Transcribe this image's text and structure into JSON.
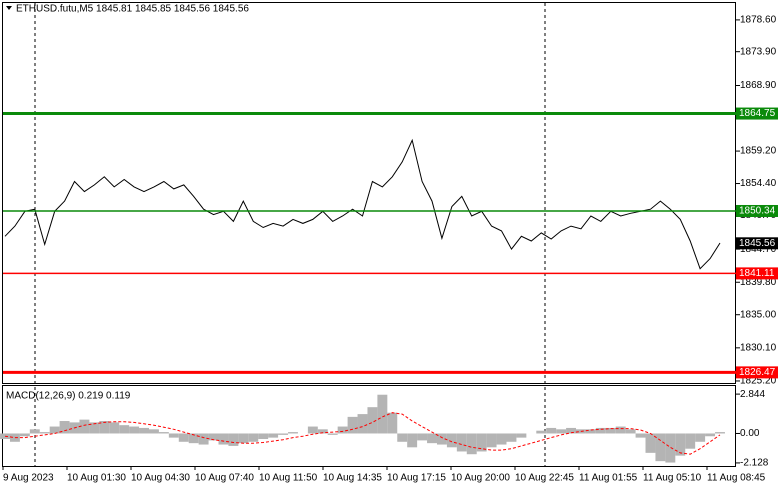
{
  "chart_data": [
    {
      "type": "line",
      "title": "ETHUSD.futu,M5  1845.81 1845.85 1845.56 1845.56",
      "color": "#000000",
      "values": [
        1846.6,
        1848.1,
        1850.3,
        1850.6,
        1845.4,
        1850.3,
        1851.8,
        1854.7,
        1853.2,
        1854.2,
        1855.4,
        1853.9,
        1855.0,
        1853.9,
        1853.2,
        1853.9,
        1854.7,
        1853.6,
        1854.2,
        1852.5,
        1850.6,
        1849.8,
        1850.3,
        1848.8,
        1851.8,
        1848.8,
        1847.9,
        1848.5,
        1848.1,
        1849.1,
        1848.5,
        1849.1,
        1850.3,
        1848.8,
        1849.6,
        1850.6,
        1849.6,
        1854.7,
        1853.9,
        1855.4,
        1857.6,
        1860.8,
        1854.7,
        1851.8,
        1846.3,
        1851.0,
        1852.5,
        1849.6,
        1850.3,
        1848.1,
        1847.4,
        1844.7,
        1846.6,
        1845.9,
        1847.1,
        1846.2,
        1847.4,
        1848.1,
        1847.7,
        1849.6,
        1848.8,
        1850.3,
        1849.6,
        1850.0,
        1850.3,
        1850.6,
        1851.8,
        1850.6,
        1849.1,
        1845.9,
        1841.8,
        1843.3,
        1845.6
      ],
      "ylim": [
        1824.9,
        1881.1
      ],
      "yticks": [
        {
          "value": 1878.6,
          "label": "1878.60"
        },
        {
          "value": 1873.9,
          "label": "1873.90"
        },
        {
          "value": 1868.9,
          "label": "1868.90"
        },
        {
          "value": 1859.2,
          "label": "1859.20"
        },
        {
          "value": 1854.4,
          "label": "1854.40"
        },
        {
          "value": 1849.7,
          "label": "1849.70"
        },
        {
          "value": 1844.7,
          "label": "1844.70"
        },
        {
          "value": 1839.8,
          "label": "1839.80"
        },
        {
          "value": 1835.0,
          "label": "1835.00"
        },
        {
          "value": 1830.1,
          "label": "1830.10"
        },
        {
          "value": 1825.2,
          "label": "1825.20"
        }
      ],
      "levels": [
        {
          "value": 1864.75,
          "color": "#0a8a0a",
          "thick": true
        },
        {
          "value": 1850.34,
          "color": "#0a8a0a",
          "thick": false
        },
        {
          "value": 1841.11,
          "color": "#ff0000",
          "thick": false
        },
        {
          "value": 1826.47,
          "color": "#ff0000",
          "thick": true
        }
      ],
      "last_price": 1845.56,
      "x_labels": [
        "9 Aug 2023",
        "10 Aug 01:30",
        "10 Aug 04:30",
        "10 Aug 07:40",
        "10 Aug 11:50",
        "10 Aug 14:35",
        "10 Aug 17:15",
        "10 Aug 20:00",
        "10 Aug 22:45",
        "11 Aug 01:55",
        "11 Aug 05:10",
        "11 Aug 08:45"
      ]
    },
    {
      "type": "macd",
      "title": "MACD(12,26,9) 0.219 0.119",
      "histogram_color": "#b4b4b4",
      "signal_color": "#ff0000",
      "histogram": [
        -0.4,
        -0.6,
        -0.2,
        0.3,
        0.1,
        0.5,
        0.9,
        0.8,
        1.0,
        0.8,
        0.9,
        0.8,
        0.6,
        0.5,
        0.4,
        0.3,
        0.1,
        -0.3,
        -0.6,
        -0.7,
        -0.8,
        -0.5,
        -0.8,
        -0.9,
        -0.7,
        -0.6,
        -0.4,
        -0.3,
        -0.1,
        0.1,
        0.0,
        0.5,
        0.3,
        -0.1,
        0.5,
        1.2,
        1.4,
        1.9,
        2.8,
        1.5,
        -0.6,
        -1.0,
        -0.5,
        -0.7,
        -0.8,
        -1.0,
        -1.3,
        -1.5,
        -1.3,
        -1.0,
        -0.8,
        -0.6,
        -0.3,
        0.0,
        0.2,
        0.4,
        0.3,
        0.4,
        0.3,
        0.3,
        0.4,
        0.4,
        0.5,
        0.3,
        -0.3,
        -1.4,
        -2.0,
        -2.1,
        -1.6,
        -1.1,
        -0.6,
        -0.2,
        0.1
      ],
      "signal": [
        -0.2,
        -0.3,
        -0.3,
        -0.2,
        -0.1,
        0.0,
        0.2,
        0.4,
        0.6,
        0.7,
        0.8,
        0.85,
        0.85,
        0.8,
        0.7,
        0.6,
        0.45,
        0.3,
        0.1,
        -0.1,
        -0.3,
        -0.45,
        -0.55,
        -0.65,
        -0.7,
        -0.7,
        -0.65,
        -0.55,
        -0.45,
        -0.3,
        -0.2,
        -0.05,
        0.05,
        0.1,
        0.15,
        0.3,
        0.5,
        0.8,
        1.2,
        1.5,
        1.4,
        0.9,
        0.5,
        0.1,
        -0.3,
        -0.6,
        -0.8,
        -1.0,
        -1.1,
        -1.2,
        -1.2,
        -1.1,
        -0.9,
        -0.7,
        -0.5,
        -0.3,
        -0.1,
        0.05,
        0.15,
        0.25,
        0.3,
        0.35,
        0.35,
        0.35,
        0.25,
        0.0,
        -0.5,
        -1.0,
        -1.4,
        -1.5,
        -1.1,
        -0.6,
        -0.1
      ],
      "ylim": [
        -2.35,
        3.43
      ],
      "yticks": [
        2.844,
        {
          "value": 0,
          "label": "0.00"
        },
        -2.128
      ]
    }
  ]
}
